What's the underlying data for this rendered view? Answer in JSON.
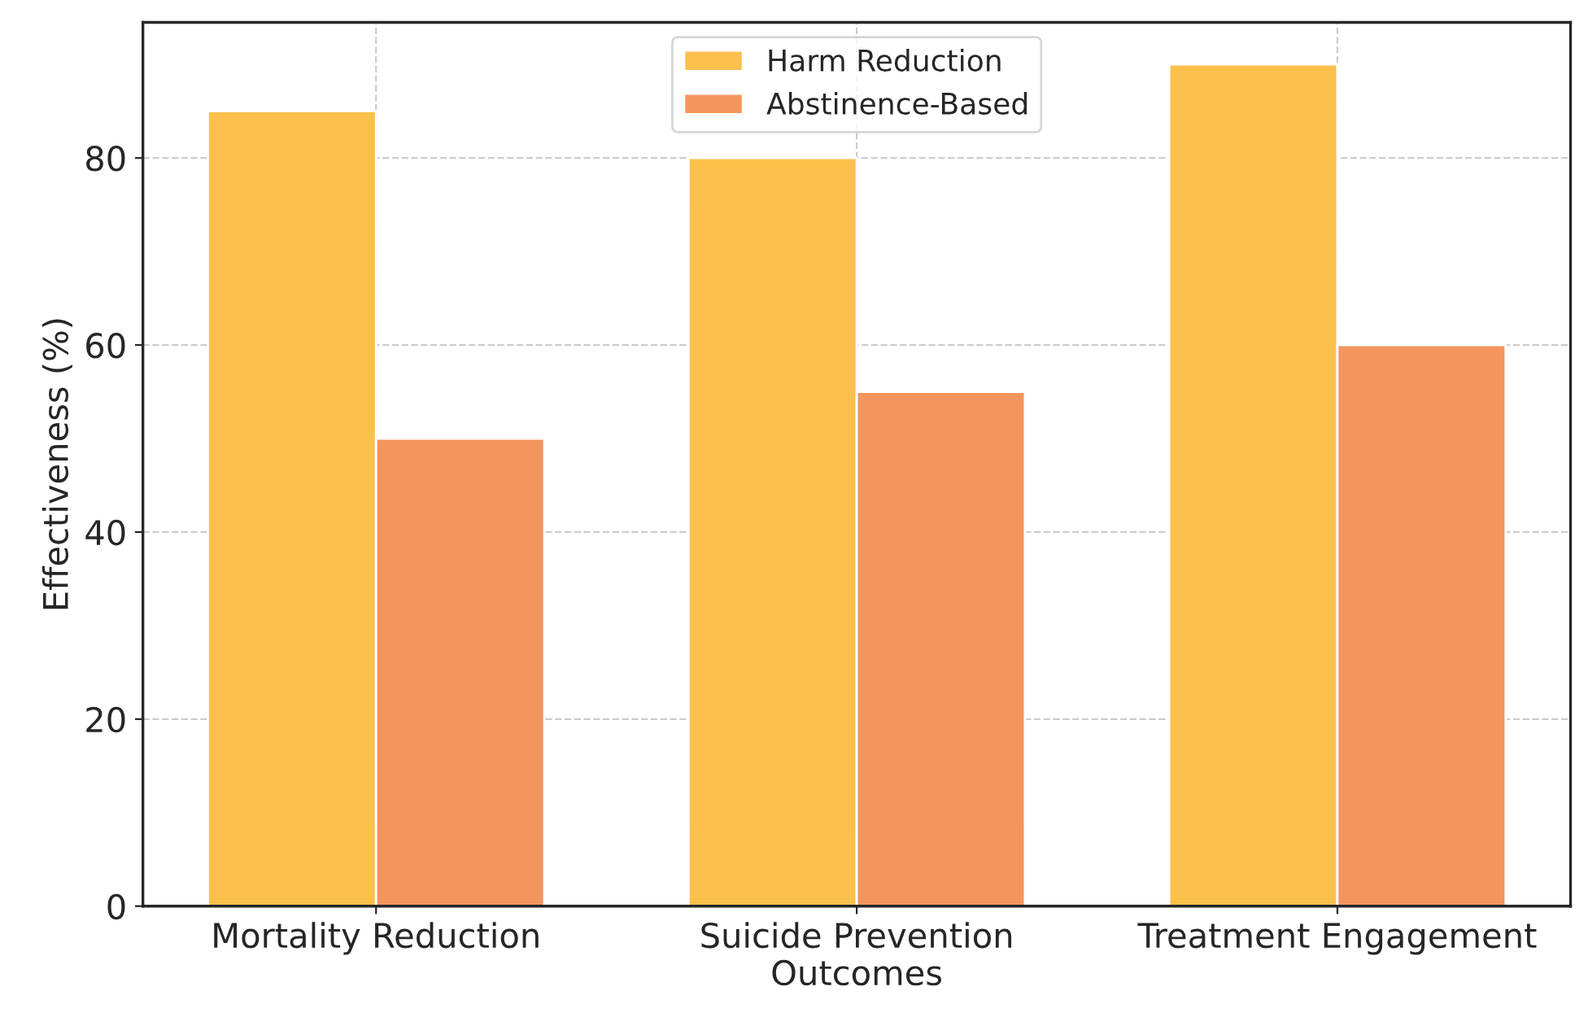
{
  "chart_data": {
    "type": "bar",
    "xlabel": "Outcomes",
    "ylabel": "Effectiveness (%)",
    "categories": [
      "Mortality Reduction",
      "Suicide Prevention",
      "Treatment Engagement"
    ],
    "series": [
      {
        "name": "Harm Reduction",
        "color": "#fcc04c",
        "values": [
          85,
          80,
          90
        ]
      },
      {
        "name": "Abstinence-Based",
        "color": "#f4955e",
        "values": [
          50,
          55,
          60
        ]
      }
    ],
    "ylim": [
      0,
      94.5
    ],
    "yticks": [
      0,
      20,
      40,
      60,
      80
    ],
    "grid": true,
    "legend": "top"
  }
}
